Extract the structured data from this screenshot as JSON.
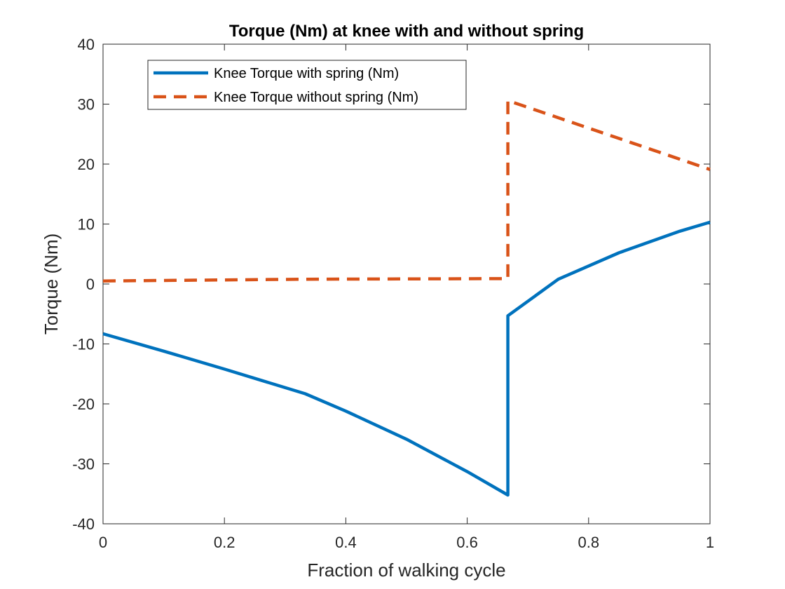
{
  "chart_data": {
    "type": "line",
    "title": "Torque (Nm) at knee with and without spring",
    "xlabel": "Fraction of walking cycle",
    "ylabel": "Torque (Nm)",
    "xlim": [
      0,
      1
    ],
    "ylim": [
      -40,
      40
    ],
    "xticks": [
      0,
      0.2,
      0.4,
      0.6,
      0.8,
      1
    ],
    "xtick_labels": [
      "0",
      "0.2",
      "0.4",
      "0.6",
      "0.8",
      "1"
    ],
    "yticks": [
      -40,
      -30,
      -20,
      -10,
      0,
      10,
      20,
      30,
      40
    ],
    "ytick_labels": [
      "-40",
      "-30",
      "-20",
      "-10",
      "0",
      "10",
      "20",
      "30",
      "40"
    ],
    "grid": false,
    "legend_position": "top-left",
    "series": [
      {
        "name": "Knee Torque with spring (Nm)",
        "color": "#0072BD",
        "style": "solid",
        "x": [
          0,
          0.1,
          0.2,
          0.333,
          0.4,
          0.5,
          0.6,
          0.667,
          0.667,
          0.75,
          0.85,
          0.95,
          1.0
        ],
        "y": [
          -8.3,
          -11.2,
          -14.2,
          -18.3,
          -21.2,
          -25.9,
          -31.3,
          -35.2,
          -5.3,
          0.8,
          5.2,
          8.8,
          10.3
        ]
      },
      {
        "name": "Knee Torque without spring (Nm)",
        "color": "#D95319",
        "style": "dashed",
        "x": [
          0,
          0.333,
          0.667,
          0.667,
          1.0
        ],
        "y": [
          0.5,
          0.8,
          0.9,
          30.6,
          19.1
        ]
      }
    ]
  }
}
